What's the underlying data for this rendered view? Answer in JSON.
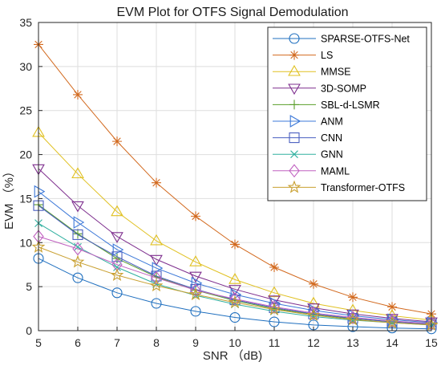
{
  "chart_data": {
    "type": "line",
    "title": "EVM Plot for OTFS Signal Demodulation",
    "xlabel": "SNR （dB)",
    "ylabel": "EVM （%）",
    "xlim": [
      5,
      15
    ],
    "ylim": [
      0,
      35
    ],
    "xticks": [
      5,
      6,
      7,
      8,
      9,
      10,
      11,
      12,
      13,
      14,
      15
    ],
    "yticks": [
      0,
      5,
      10,
      15,
      20,
      25,
      30,
      35
    ],
    "grid": true,
    "legend_position": "top-right",
    "x": [
      5,
      6,
      7,
      8,
      9,
      10,
      11,
      12,
      13,
      14,
      15
    ],
    "series": [
      {
        "name": "SPARSE-OTFS-Net",
        "color": "#1f6fbf",
        "marker": "circle",
        "values": [
          8.2,
          6.0,
          4.3,
          3.1,
          2.2,
          1.5,
          1.0,
          0.65,
          0.45,
          0.3,
          0.2
        ]
      },
      {
        "name": "LS",
        "color": "#d2691e",
        "marker": "asterisk",
        "values": [
          32.5,
          26.8,
          21.5,
          16.8,
          13.0,
          9.8,
          7.2,
          5.3,
          3.8,
          2.7,
          1.9
        ]
      },
      {
        "name": "MMSE",
        "color": "#e0c020",
        "marker": "triangle-up",
        "values": [
          22.5,
          17.8,
          13.5,
          10.2,
          7.8,
          5.8,
          4.3,
          3.1,
          2.3,
          1.7,
          1.2
        ]
      },
      {
        "name": "3D-SOMP",
        "color": "#7e2f8e",
        "marker": "triangle-down",
        "values": [
          18.4,
          14.2,
          10.7,
          8.1,
          6.2,
          4.7,
          3.5,
          2.6,
          1.9,
          1.4,
          1.0
        ]
      },
      {
        "name": "SBL-d-LSMR",
        "color": "#5a9e2a",
        "marker": "plus",
        "values": [
          14.3,
          11.0,
          8.2,
          6.1,
          4.6,
          3.4,
          2.5,
          1.85,
          1.35,
          1.0,
          0.72
        ]
      },
      {
        "name": "ANM",
        "color": "#3c78d8",
        "marker": "triangle-right",
        "values": [
          15.8,
          12.3,
          9.2,
          7.1,
          5.4,
          4.1,
          3.1,
          2.3,
          1.7,
          1.25,
          0.9
        ]
      },
      {
        "name": "CNN",
        "color": "#4a5fc0",
        "marker": "square",
        "values": [
          14.2,
          10.9,
          8.4,
          6.2,
          4.7,
          3.5,
          2.6,
          1.9,
          1.4,
          1.0,
          0.73
        ]
      },
      {
        "name": "GNN",
        "color": "#30b0a0",
        "marker": "x",
        "values": [
          12.2,
          9.5,
          7.2,
          5.3,
          4.0,
          3.0,
          2.2,
          1.6,
          1.2,
          0.9,
          0.65
        ]
      },
      {
        "name": "MAML",
        "color": "#c060c0",
        "marker": "diamond",
        "values": [
          10.7,
          9.3,
          7.5,
          6.0,
          4.6,
          3.6,
          2.7,
          2.0,
          1.5,
          1.1,
          0.8
        ]
      },
      {
        "name": "Transformer-OTFS",
        "color": "#c9a030",
        "marker": "pentagram",
        "values": [
          9.5,
          7.8,
          6.3,
          5.1,
          4.1,
          3.2,
          2.4,
          1.75,
          1.25,
          0.9,
          0.65
        ]
      }
    ]
  }
}
